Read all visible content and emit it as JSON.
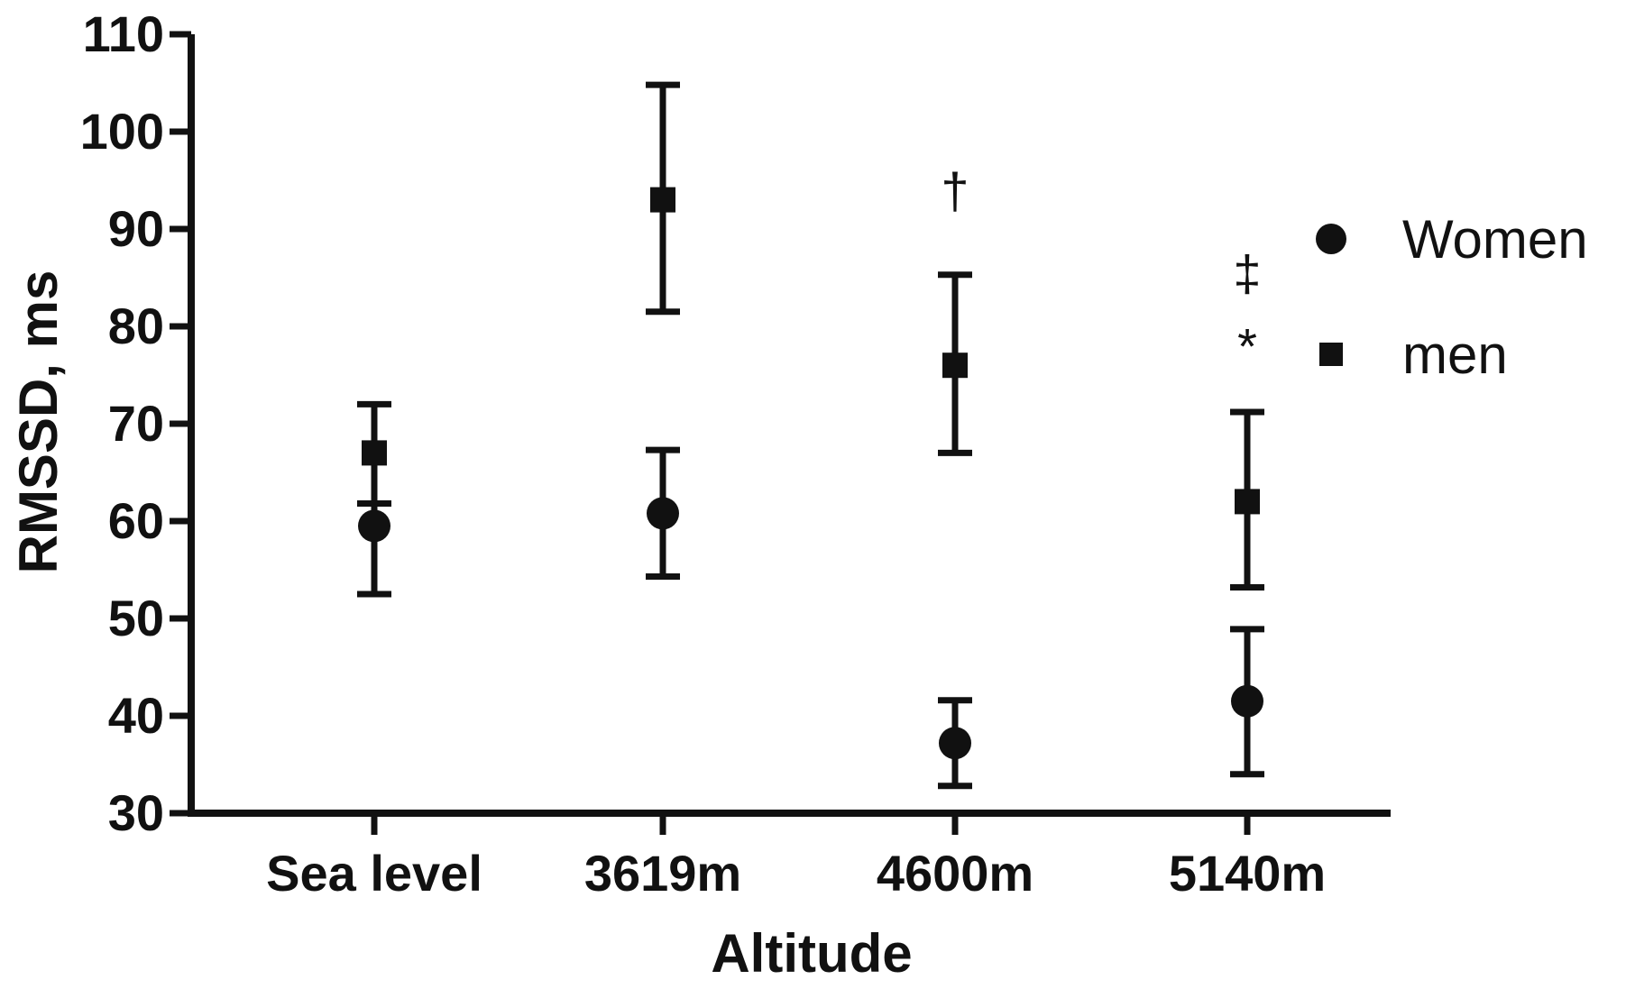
{
  "chart_data": {
    "type": "scatter",
    "xlabel": "Altitude",
    "ylabel": "RMSSD, ms",
    "ylim": [
      30,
      110
    ],
    "yticks": [
      30,
      40,
      50,
      60,
      70,
      80,
      90,
      100,
      110
    ],
    "categories": [
      "Sea level",
      "3619m",
      "4600m",
      "5140m"
    ],
    "grid": false,
    "legend_position": "right",
    "series": [
      {
        "name": "Women",
        "marker": "circle",
        "values": [
          59.5,
          60.8,
          37.2,
          41.5
        ],
        "error_low": [
          52.5,
          54.3,
          32.8,
          34.0
        ],
        "error_high": [
          61.8,
          67.3,
          41.6,
          48.9
        ]
      },
      {
        "name": "men",
        "marker": "square",
        "values": [
          67.0,
          93.0,
          76.0,
          62.0
        ],
        "error_low": [
          61.8,
          81.5,
          67.0,
          53.2
        ],
        "error_high": [
          72.0,
          104.8,
          85.3,
          71.2
        ]
      }
    ],
    "annotations": [
      {
        "text": "†",
        "category": "4600m",
        "y": 94
      },
      {
        "text": "‡",
        "category": "5140m",
        "y": 85.5
      },
      {
        "text": "*",
        "category": "5140m",
        "y": 78
      }
    ]
  }
}
